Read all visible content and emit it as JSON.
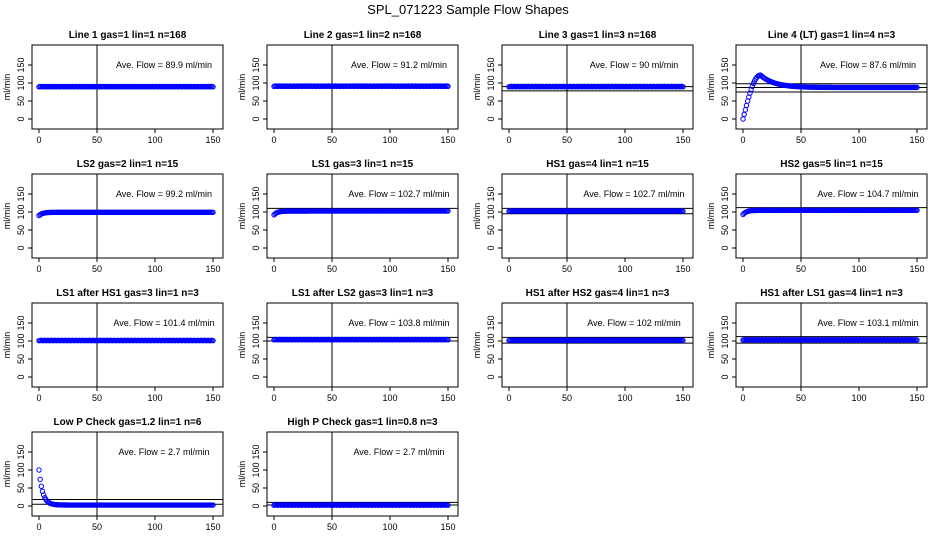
{
  "page": {
    "title": "SPL_071223  Sample Flow Shapes"
  },
  "colors": {
    "points": "#0000ff",
    "axes": "#000000",
    "background": "#ffffff"
  },
  "chart_data": [
    {
      "type": "scatter",
      "title": "Line 1 gas=1 lin=1 n=168",
      "ylabel": "ml/min",
      "xlim": [
        0,
        150
      ],
      "ylim": [
        0,
        200
      ],
      "xticks": [
        0,
        50,
        100,
        150
      ],
      "yticks": [
        0,
        50,
        100,
        150
      ],
      "annotation": "Ave. Flow =  89.9  ml/min",
      "vline_x": 50,
      "hlines": [],
      "series": [
        {
          "shape": "flat",
          "level": 89.9
        }
      ]
    },
    {
      "type": "scatter",
      "title": "Line 2 gas=1 lin=2 n=168",
      "ylabel": "ml/min",
      "xlim": [
        0,
        150
      ],
      "ylim": [
        0,
        200
      ],
      "xticks": [
        0,
        50,
        100,
        150
      ],
      "yticks": [
        0,
        50,
        100,
        150
      ],
      "annotation": "Ave. Flow =  91.2  ml/min",
      "vline_x": 50,
      "hlines": [],
      "series": [
        {
          "shape": "flat",
          "level": 91.2
        }
      ]
    },
    {
      "type": "scatter",
      "title": "Line 3 gas=1 lin=3 n=168",
      "ylabel": "ml/min",
      "xlim": [
        0,
        150
      ],
      "ylim": [
        0,
        200
      ],
      "xticks": [
        0,
        50,
        100,
        150
      ],
      "yticks": [
        0,
        50,
        100,
        150
      ],
      "annotation": "Ave. Flow =  90  ml/min",
      "vline_x": 50,
      "hlines": [
        90,
        78
      ],
      "series": [
        {
          "shape": "flat",
          "level": 90
        }
      ]
    },
    {
      "type": "scatter",
      "title": "Line 4 (LT) gas=1 lin=4 n=3",
      "ylabel": "ml/min",
      "xlim": [
        0,
        150
      ],
      "ylim": [
        0,
        200
      ],
      "xticks": [
        0,
        50,
        100,
        150
      ],
      "yticks": [
        0,
        50,
        100,
        150
      ],
      "annotation": "Ave. Flow =  87.6  ml/min",
      "vline_x": 50,
      "hlines": [
        98,
        87.6,
        75
      ],
      "series": [
        {
          "shape": "overshoot",
          "level": 87.6,
          "start": 0,
          "peak": 122,
          "peak_x": 15
        }
      ]
    },
    {
      "type": "scatter",
      "title": "LS2 gas=2 lin=1 n=15",
      "ylabel": "ml/min",
      "xlim": [
        0,
        150
      ],
      "ylim": [
        0,
        200
      ],
      "xticks": [
        0,
        50,
        100,
        150
      ],
      "yticks": [
        0,
        50,
        100,
        150
      ],
      "annotation": "Ave. Flow =  99.2  ml/min",
      "vline_x": 50,
      "hlines": [],
      "series": [
        {
          "shape": "rise",
          "level": 99.2,
          "start": 90
        }
      ]
    },
    {
      "type": "scatter",
      "title": "LS1 gas=3 lin=1 n=15",
      "ylabel": "ml/min",
      "xlim": [
        0,
        150
      ],
      "ylim": [
        0,
        200
      ],
      "xticks": [
        0,
        50,
        100,
        150
      ],
      "yticks": [
        0,
        50,
        100,
        150
      ],
      "annotation": "Ave. Flow =  102.7  ml/min",
      "vline_x": 50,
      "hlines": [
        110
      ],
      "series": [
        {
          "shape": "rise",
          "level": 102.7,
          "start": 92
        }
      ]
    },
    {
      "type": "scatter",
      "title": "HS1 gas=4 lin=1 n=15",
      "ylabel": "ml/min",
      "xlim": [
        0,
        150
      ],
      "ylim": [
        0,
        200
      ],
      "xticks": [
        0,
        50,
        100,
        150
      ],
      "yticks": [
        0,
        50,
        100,
        150
      ],
      "annotation": "Ave. Flow =  102.7  ml/min",
      "vline_x": 50,
      "hlines": [
        110,
        95
      ],
      "series": [
        {
          "shape": "flat",
          "level": 102.7
        }
      ]
    },
    {
      "type": "scatter",
      "title": "HS2 gas=5 lin=1 n=15",
      "ylabel": "ml/min",
      "xlim": [
        0,
        150
      ],
      "ylim": [
        0,
        200
      ],
      "xticks": [
        0,
        50,
        100,
        150
      ],
      "yticks": [
        0,
        50,
        100,
        150
      ],
      "annotation": "Ave. Flow =  104.7  ml/min",
      "vline_x": 50,
      "hlines": [
        112
      ],
      "series": [
        {
          "shape": "rise",
          "level": 104.7,
          "start": 93
        }
      ]
    },
    {
      "type": "scatter",
      "title": "LS1 after HS1 gas=3 lin=1 n=3",
      "ylabel": "ml/min",
      "xlim": [
        0,
        150
      ],
      "ylim": [
        0,
        200
      ],
      "xticks": [
        0,
        50,
        100,
        150
      ],
      "yticks": [
        0,
        50,
        100,
        150
      ],
      "annotation": "Ave. Flow =  101.4  ml/min",
      "vline_x": 50,
      "hlines": [],
      "series": [
        {
          "shape": "flat",
          "level": 101.4
        }
      ]
    },
    {
      "type": "scatter",
      "title": "LS1 after LS2 gas=3 lin=1 n=3",
      "ylabel": "ml/min",
      "xlim": [
        0,
        150
      ],
      "ylim": [
        0,
        200
      ],
      "xticks": [
        0,
        50,
        100,
        150
      ],
      "yticks": [
        0,
        50,
        100,
        150
      ],
      "annotation": "Ave. Flow =  103.8  ml/min",
      "vline_x": 50,
      "hlines": [
        110,
        100
      ],
      "series": [
        {
          "shape": "flat",
          "level": 103.8
        }
      ]
    },
    {
      "type": "scatter",
      "title": "HS1 after HS2 gas=4 lin=1 n=3",
      "ylabel": "ml/min",
      "xlim": [
        0,
        150
      ],
      "ylim": [
        0,
        200
      ],
      "xticks": [
        0,
        50,
        100,
        150
      ],
      "yticks": [
        0,
        50,
        100,
        150
      ],
      "annotation": "Ave. Flow =  102  ml/min",
      "vline_x": 50,
      "hlines": [
        110,
        94
      ],
      "series": [
        {
          "shape": "flat",
          "level": 102
        }
      ]
    },
    {
      "type": "scatter",
      "title": "HS1 after LS1 gas=4 lin=1 n=3",
      "ylabel": "ml/min",
      "xlim": [
        0,
        150
      ],
      "ylim": [
        0,
        200
      ],
      "xticks": [
        0,
        50,
        100,
        150
      ],
      "yticks": [
        0,
        50,
        100,
        150
      ],
      "annotation": "Ave. Flow =  103.1  ml/min",
      "vline_x": 50,
      "hlines": [
        112,
        94
      ],
      "series": [
        {
          "shape": "flat",
          "level": 103.1
        }
      ]
    },
    {
      "type": "scatter",
      "title": "Low P Check gas=1.2 lin=1 n=6",
      "ylabel": "ml/min",
      "xlim": [
        0,
        150
      ],
      "ylim": [
        0,
        200
      ],
      "xticks": [
        0,
        50,
        100,
        150
      ],
      "yticks": [
        0,
        50,
        100,
        150
      ],
      "annotation": "Ave. Flow =  2.7  ml/min",
      "vline_x": 50,
      "hlines": [
        18,
        5
      ],
      "series": [
        {
          "shape": "decay",
          "level": 2.7,
          "start": 100
        }
      ]
    },
    {
      "type": "scatter",
      "title": "High P Check gas=1 lin=0.8 n=3",
      "ylabel": "ml/min",
      "xlim": [
        0,
        150
      ],
      "ylim": [
        0,
        200
      ],
      "xticks": [
        0,
        50,
        100,
        150
      ],
      "yticks": [
        0,
        50,
        100,
        150
      ],
      "annotation": "Ave. Flow =  2.7  ml/min",
      "vline_x": 50,
      "hlines": [
        10,
        2.7
      ],
      "series": [
        {
          "shape": "flat",
          "level": 2.7
        }
      ]
    }
  ]
}
